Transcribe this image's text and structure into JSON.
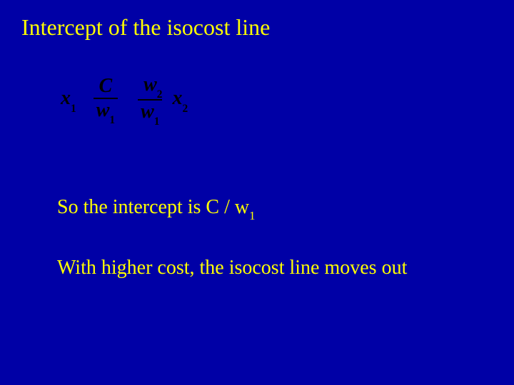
{
  "colors": {
    "background": "#0000a6",
    "title_color": "#ffff00",
    "body_text_color": "#ffff00",
    "equation_color": "#000000",
    "frac_bar_color": "#000000"
  },
  "title": "Intercept of the isocost line",
  "equation": {
    "lhs_var": "x",
    "lhs_sub": "1",
    "eq_sym": "",
    "frac1_num": "C",
    "frac1_den_var": "w",
    "frac1_den_sub": "1",
    "plus_sym": "",
    "frac2_num_left_sym": "",
    "frac2_num_var": "w",
    "frac2_num_sub": "2",
    "frac2_den_var": "w",
    "frac2_den_sub": "1",
    "tail_var": "x",
    "tail_sub": "2"
  },
  "line1_pre": "So the intercept is  ",
  "line1_math_C": "C",
  "line1_math_slash": " / ",
  "line1_math_w": "w",
  "line1_math_sub": "1",
  "line2": "With higher cost, the isocost line moves out"
}
